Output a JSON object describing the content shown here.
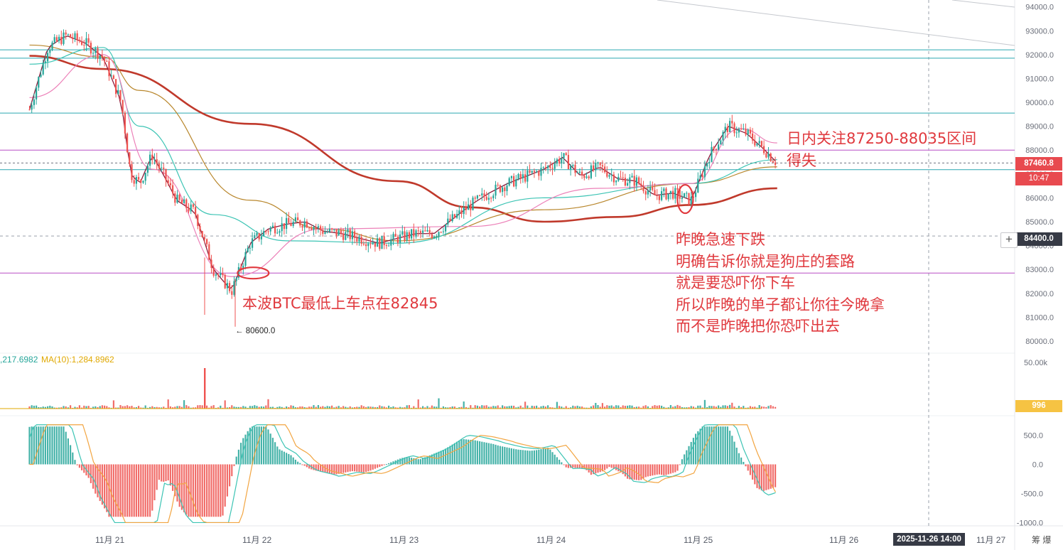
{
  "chart_data": {
    "type": "candlestick",
    "instrument": "BTC",
    "price_axis": {
      "ticks": [
        "94000.0",
        "93000.0",
        "92000.0",
        "91000.0",
        "90000.0",
        "89000.0",
        "88000.0",
        "87000.0",
        "86000.0",
        "85000.0",
        "84000.0",
        "83000.0",
        "82000.0",
        "81000.0",
        "80000.0"
      ],
      "range": [
        79700,
        94200
      ]
    },
    "x_labels": [
      "11月 21",
      "11月 22",
      "11月 23",
      "11月 24",
      "11月 25",
      "11月 26",
      "11月 27"
    ],
    "close_path": [
      [
        "11-20 12:00",
        89700
      ],
      [
        "11-20 15:00",
        92300
      ],
      [
        "11-20 18:00",
        92800
      ],
      [
        "11-20 21:00",
        92500
      ],
      [
        "11-21 00:00",
        91900
      ],
      [
        "11-21 03:00",
        90000
      ],
      [
        "11-21 04:30",
        87000
      ],
      [
        "11-21 06:00",
        86600
      ],
      [
        "11-21 08:00",
        87800
      ],
      [
        "11-21 10:00",
        86900
      ],
      [
        "11-21 12:00",
        85900
      ],
      [
        "11-21 15:00",
        85400
      ],
      [
        "11-21 18:00",
        83000
      ],
      [
        "11-21 21:00",
        82100
      ],
      [
        "11-22 00:00",
        84100
      ],
      [
        "11-22 03:00",
        84700
      ],
      [
        "11-22 06:00",
        84900
      ],
      [
        "11-22 09:00",
        85000
      ],
      [
        "11-22 12:00",
        84600
      ],
      [
        "11-22 15:00",
        84500
      ],
      [
        "11-22 18:00",
        84300
      ],
      [
        "11-22 21:00",
        84100
      ],
      [
        "11-23 00:00",
        84300
      ],
      [
        "11-23 03:00",
        84500
      ],
      [
        "11-23 06:00",
        84500
      ],
      [
        "11-23 09:00",
        85100
      ],
      [
        "11-23 12:00",
        85700
      ],
      [
        "11-23 15:00",
        86200
      ],
      [
        "11-23 18:00",
        86600
      ],
      [
        "11-23 21:00",
        86900
      ],
      [
        "11-24 00:00",
        87200
      ],
      [
        "11-24 03:00",
        87700
      ],
      [
        "11-24 06:00",
        86900
      ],
      [
        "11-24 09:00",
        87300
      ],
      [
        "11-24 12:00",
        86800
      ],
      [
        "11-24 15:00",
        86700
      ],
      [
        "11-24 18:00",
        86100
      ],
      [
        "11-24 21:00",
        86200
      ],
      [
        "11-25 00:00",
        85900
      ],
      [
        "11-25 03:00",
        87800
      ],
      [
        "11-25 06:00",
        89000
      ],
      [
        "11-25 09:00",
        88700
      ],
      [
        "11-25 12:00",
        88000
      ],
      [
        "11-25 14:00",
        87460
      ]
    ],
    "moving_average_curves": [
      {
        "color": "#c0392b",
        "points": [
          [
            "11-20 12:00",
            91950
          ],
          [
            "11-21 00:00",
            91400
          ],
          [
            "11-22 00:00",
            89100
          ],
          [
            "11-23 00:00",
            86700
          ],
          [
            "11-23 12:00",
            85600
          ],
          [
            "11-24 00:00",
            85000
          ],
          [
            "11-24 12:00",
            85200
          ],
          [
            "11-25 00:00",
            85700
          ],
          [
            "11-25 14:00",
            86400
          ]
        ]
      },
      {
        "color": "#b8862b",
        "points": [
          [
            "11-20 12:00",
            92400
          ],
          [
            "11-21 00:00",
            91900
          ],
          [
            "11-21 06:00",
            90500
          ],
          [
            "11-22 00:00",
            85900
          ],
          [
            "11-22 12:00",
            84700
          ],
          [
            "11-23 00:00",
            84200
          ],
          [
            "11-24 00:00",
            85500
          ],
          [
            "11-25 00:00",
            86600
          ],
          [
            "11-25 14:00",
            87300
          ]
        ]
      },
      {
        "color": "#3cc4b4",
        "points": [
          [
            "11-20 12:00",
            91600
          ],
          [
            "11-21 00:00",
            92300
          ],
          [
            "11-21 06:00",
            89000
          ],
          [
            "11-21 18:00",
            85300
          ],
          [
            "11-22 06:00",
            84200
          ],
          [
            "11-23 00:00",
            84100
          ],
          [
            "11-24 00:00",
            86000
          ],
          [
            "11-25 00:00",
            86600
          ],
          [
            "11-25 14:00",
            87600
          ]
        ]
      },
      {
        "color": "#ec80b8",
        "points": [
          [
            "11-20 12:00",
            90200
          ],
          [
            "11-21 00:00",
            92000
          ],
          [
            "11-21 08:00",
            87200
          ],
          [
            "11-21 21:00",
            82700
          ],
          [
            "11-22 12:00",
            84700
          ],
          [
            "11-23 12:00",
            84800
          ],
          [
            "11-24 09:00",
            86400
          ],
          [
            "11-25 00:00",
            86600
          ],
          [
            "11-25 08:00",
            88900
          ],
          [
            "11-25 14:00",
            88300
          ]
        ]
      }
    ],
    "current_price": "87460.8",
    "countdown": "10:47",
    "crosshair_price": "84400.0",
    "low_marker": "80600.0",
    "horizontal_levels": [
      {
        "value": 92200,
        "color": "#2aa6b0"
      },
      {
        "value": 91850,
        "color": "#2aa6b0"
      },
      {
        "value": 89550,
        "color": "#2aa6b0"
      },
      {
        "value": 88000,
        "color": "#b94fc5"
      },
      {
        "value": 87180,
        "color": "#2aa6b0"
      },
      {
        "value": 82850,
        "color": "#b94fc5"
      }
    ],
    "volume": {
      "indicator_label": ",217.6982",
      "ma_label": "MA(10):1,284.8962",
      "axis_top": "50.00k",
      "current": "996"
    },
    "macd": {
      "ticks": [
        "500.0",
        "0.0",
        "-500.0",
        "-1000.0"
      ],
      "range": [
        -1080,
        750
      ]
    },
    "crosshair_time": "2025-11-26 14:00",
    "corner_label": "筹 爆",
    "annotations": {
      "top": [
        "日内关注87250-88035区间",
        "得失"
      ],
      "right": [
        "昨晚急速下跌",
        "明确告诉你就是狗庄的套路",
        "就是要恐吓你下车",
        "所以昨晚的单子都让你往今晚拿",
        "而不是昨晚把你恐吓出去"
      ],
      "left": "本波BTC最低上车点在82845"
    },
    "colors": {
      "up": "#26a69a",
      "down": "#ef5350",
      "annotation": "#e0393e",
      "price_tag": "#e84a4f",
      "volume_badge": "#f6c343"
    }
  }
}
